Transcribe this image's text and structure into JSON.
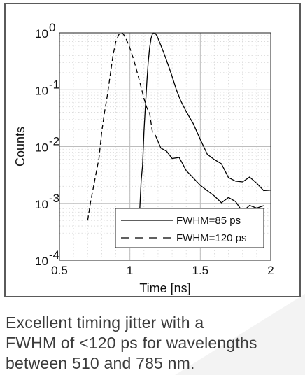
{
  "chart_data": {
    "type": "line",
    "xlabel": "Time [ns]",
    "ylabel": "Counts",
    "xlim": [
      0.5,
      2
    ],
    "ylim": [
      0.0001,
      1
    ],
    "y_scale": "log",
    "grid": true,
    "legend_placement": "bottom-right",
    "x_ticks": [
      {
        "value": 0.5,
        "label": "0.5"
      },
      {
        "value": 1,
        "label": "1"
      },
      {
        "value": 1.5,
        "label": "1.5"
      },
      {
        "value": 2,
        "label": "2"
      }
    ],
    "y_ticks": [
      {
        "value": 1,
        "base": "10",
        "exp": "0"
      },
      {
        "value": 0.1,
        "base": "10",
        "exp": "-1"
      },
      {
        "value": 0.01,
        "base": "10",
        "exp": "-2"
      },
      {
        "value": 0.001,
        "base": "10",
        "exp": "-3"
      },
      {
        "value": 0.0001,
        "base": "10",
        "exp": "-4"
      }
    ],
    "series": [
      {
        "name": "FWHM=85 ps",
        "style": "solid",
        "color": "#000000",
        "x": [
          1.07,
          1.08,
          1.09,
          1.1,
          1.11,
          1.12,
          1.13,
          1.14,
          1.15,
          1.16,
          1.17,
          1.18,
          1.19,
          1.2,
          1.22,
          1.24,
          1.26,
          1.28,
          1.3,
          1.33,
          1.36,
          1.4,
          1.45,
          1.5,
          1.55,
          1.6,
          1.65,
          1.7,
          1.75,
          1.8,
          1.85,
          1.9,
          1.95,
          2.0
        ],
        "y": [
          0.0008,
          0.002,
          0.006,
          0.018,
          0.05,
          0.13,
          0.3,
          0.55,
          0.8,
          0.95,
          1.0,
          0.98,
          0.9,
          0.8,
          0.6,
          0.45,
          0.33,
          0.24,
          0.17,
          0.1,
          0.065,
          0.04,
          0.023,
          0.014,
          0.009,
          0.0065,
          0.005,
          0.0038,
          0.003,
          0.0025,
          0.0022,
          0.002,
          0.0019,
          0.0018
        ]
      },
      {
        "name": "FWHM=120 ps",
        "style": "dashed",
        "color": "#000000",
        "x": [
          0.7,
          0.72,
          0.74,
          0.76,
          0.78,
          0.8,
          0.82,
          0.84,
          0.86,
          0.88,
          0.9,
          0.92,
          0.93,
          0.94,
          0.95,
          0.96,
          0.98,
          1.0,
          1.02,
          1.04,
          1.06,
          1.08,
          1.1,
          1.12,
          1.14,
          1.16,
          1.18
        ],
        "y": [
          0.0005,
          0.0009,
          0.0018,
          0.0035,
          0.007,
          0.015,
          0.035,
          0.08,
          0.18,
          0.4,
          0.7,
          0.92,
          0.99,
          1.0,
          0.97,
          0.9,
          0.72,
          0.54,
          0.38,
          0.26,
          0.17,
          0.11,
          0.07,
          0.045,
          0.03,
          0.021,
          0.016
        ]
      },
      {
        "name": "FWHM=120 ps",
        "style": "solid",
        "color": "#000000",
        "x": [
          1.18,
          1.22,
          1.26,
          1.3,
          1.35,
          1.4,
          1.45,
          1.5,
          1.55,
          1.6,
          1.65,
          1.7,
          1.75,
          1.8,
          1.85,
          1.9,
          1.95
        ],
        "y": [
          0.016,
          0.012,
          0.009,
          0.0068,
          0.005,
          0.0037,
          0.0027,
          0.002,
          0.0016,
          0.0013,
          0.0011,
          0.001,
          0.0009,
          0.00085,
          0.0008,
          0.00075,
          0.0007
        ]
      }
    ]
  },
  "caption": {
    "line1": "Excellent timing jitter with a",
    "line2": "FWHM of <120 ps for wavelengths",
    "line3": "between 510 and 785 nm."
  },
  "colors": {
    "frame": "#5a5a5a",
    "grid": "#bdbdbd",
    "caption_text": "#3b3b3b",
    "background_shape": "#f3f3f3"
  }
}
